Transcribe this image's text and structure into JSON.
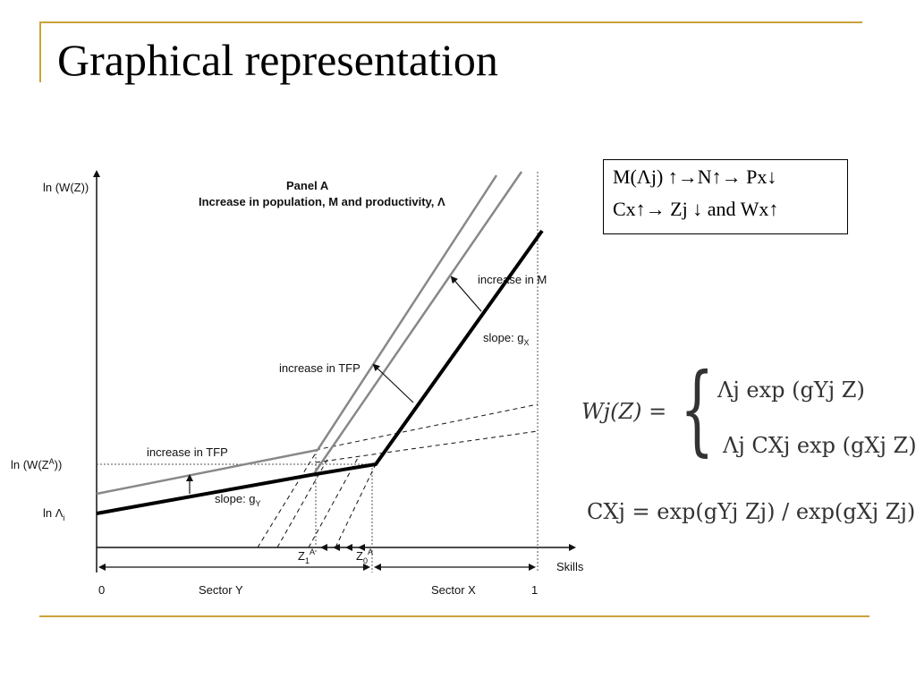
{
  "slide": {
    "title": "Graphical representation"
  },
  "figure": {
    "y_axis_label": "ln (W(Z))",
    "panel_title": "Panel A",
    "panel_subtitle": "Increase in population, M and productivity, Λ",
    "label_increase_in_m": "increase in M",
    "label_slope_gx": "slope: g",
    "label_slope_gx_sub": "X",
    "label_increase_tfp_upper": "increase in TFP",
    "label_increase_tfp_lower": "increase in TFP",
    "label_slope_gy": "slope: g",
    "label_slope_gy_sub": "Y",
    "label_ln_wza": "ln (W(Z",
    "label_ln_wza_sup": "A",
    "label_ln_wza_end": "))",
    "label_ln_lambda": "ln Λ",
    "label_ln_lambda_sub": "i",
    "label_z1": "Z",
    "label_z1_sub": "1",
    "label_z1_sup": "A",
    "label_z0": "Z",
    "label_z0_sub": "0",
    "label_z0_sup": "A",
    "x_axis_label": "Skills",
    "tick_0": "0",
    "tick_1": "1",
    "sector_y": "Sector Y",
    "sector_x": "Sector X"
  },
  "chain_box": {
    "line1": "M(Λj) ↑→N↑→ Px↓",
    "line2": "Cx↑→ Zj ↓ and Wx↑"
  },
  "equations": {
    "wage_lhs": "Wj(Z) =",
    "wage_case_1": "Λj exp (gYj Z)",
    "wage_case_2": "Λj CXj exp (gXj Z)",
    "cx_def": "CXj = exp(gYj Zj) / exp(gXj Zj)"
  }
}
